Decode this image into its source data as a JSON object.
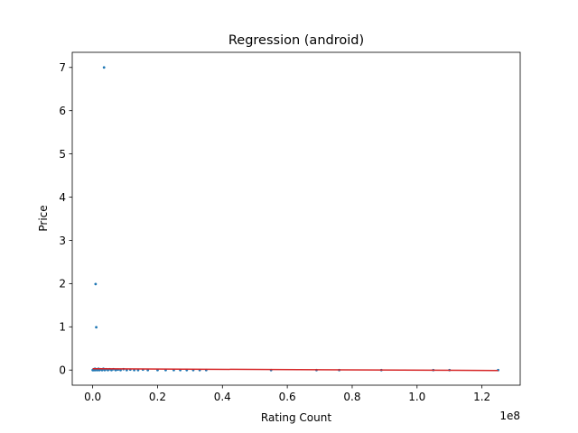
{
  "chart_data": {
    "type": "scatter",
    "title": "Regression (android)",
    "xlabel": "Rating Count",
    "ylabel": "Price",
    "x_offset_label": "1e8",
    "xlim": [
      -6300000,
      131800000
    ],
    "ylim": [
      -0.35,
      7.35
    ],
    "x_ticks": [
      {
        "value": 0,
        "label": "0.0"
      },
      {
        "value": 20000000,
        "label": "0.2"
      },
      {
        "value": 40000000,
        "label": "0.4"
      },
      {
        "value": 60000000,
        "label": "0.6"
      },
      {
        "value": 80000000,
        "label": "0.8"
      },
      {
        "value": 100000000,
        "label": "1.0"
      },
      {
        "value": 120000000,
        "label": "1.2"
      }
    ],
    "y_ticks": [
      {
        "value": 0,
        "label": "0"
      },
      {
        "value": 1,
        "label": "1"
      },
      {
        "value": 2,
        "label": "2"
      },
      {
        "value": 3,
        "label": "3"
      },
      {
        "value": 4,
        "label": "4"
      },
      {
        "value": 5,
        "label": "5"
      },
      {
        "value": 6,
        "label": "6"
      },
      {
        "value": 7,
        "label": "7"
      }
    ],
    "grid": false,
    "series": [
      {
        "kind": "scatter",
        "color": "#1f77b4",
        "points": [
          [
            3500000,
            7.0
          ],
          [
            900000,
            1.99
          ],
          [
            1100000,
            0.99
          ],
          [
            0,
            0.0
          ],
          [
            150000,
            0.0
          ],
          [
            300000,
            0.02
          ],
          [
            500000,
            0.0
          ],
          [
            700000,
            0.03
          ],
          [
            900000,
            0.0
          ],
          [
            1200000,
            0.02
          ],
          [
            1500000,
            0.0
          ],
          [
            1800000,
            0.03
          ],
          [
            2100000,
            0.0
          ],
          [
            2500000,
            0.02
          ],
          [
            2900000,
            0.0
          ],
          [
            3300000,
            0.03
          ],
          [
            3700000,
            0.0
          ],
          [
            4200000,
            0.02
          ],
          [
            4700000,
            0.0
          ],
          [
            5200000,
            0.02
          ],
          [
            5800000,
            0.0
          ],
          [
            6400000,
            0.02
          ],
          [
            7100000,
            0.0
          ],
          [
            7800000,
            0.01
          ],
          [
            8600000,
            0.0
          ],
          [
            9500000,
            0.02
          ],
          [
            10500000,
            0.0
          ],
          [
            11600000,
            0.01
          ],
          [
            12800000,
            0.0
          ],
          [
            14000000,
            0.0
          ],
          [
            15500000,
            0.01
          ],
          [
            17000000,
            0.0
          ],
          [
            20000000,
            0.0
          ],
          [
            22500000,
            0.0
          ],
          [
            25000000,
            0.0
          ],
          [
            27000000,
            0.0
          ],
          [
            29000000,
            0.0
          ],
          [
            31000000,
            0.0
          ],
          [
            33000000,
            0.0
          ],
          [
            35000000,
            0.0
          ],
          [
            55000000,
            0.0
          ],
          [
            69000000,
            0.0
          ],
          [
            76000000,
            0.0
          ],
          [
            89000000,
            0.0
          ],
          [
            105000000,
            0.0
          ],
          [
            110000000,
            0.0
          ],
          [
            125000000,
            0.0
          ]
        ]
      },
      {
        "kind": "line",
        "color": "#d62728",
        "points": [
          [
            0,
            0.03
          ],
          [
            125000000,
            -0.01
          ]
        ]
      }
    ]
  }
}
